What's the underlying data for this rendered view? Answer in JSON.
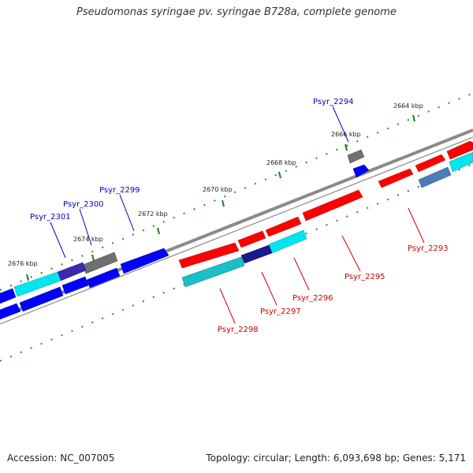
{
  "title": "Pseudomonas syringae pv. syringae B728a, complete genome",
  "footer": {
    "accession": "Accession: NC_007005",
    "stats": "Topology: circular; Length: 6,093,698 bp; Genes: 5,171"
  },
  "colors": {
    "forward_gene": "#ff0000",
    "reverse_gene": "#0000ff",
    "cyan_feature": "#00e5f0",
    "gray_feature": "#707070",
    "steelblue_feature": "#4a7db8",
    "backbone": "#8a8a8a",
    "tick_dots": "#2a8a2a",
    "label_forward": "#cc0000",
    "label_reverse": "#0000cc"
  },
  "scale_labels": [
    "2664 kbp",
    "2666 kbp",
    "2668 kbp",
    "2670 kbp",
    "2672 kbp",
    "2674 kbp",
    "2676 kbp"
  ],
  "gene_labels": [
    {
      "name": "Psyr_2294",
      "strand": "reverse"
    },
    {
      "name": "Psyr_2299",
      "strand": "reverse"
    },
    {
      "name": "Psyr_2300",
      "strand": "reverse"
    },
    {
      "name": "Psyr_2301",
      "strand": "reverse"
    },
    {
      "name": "Psyr_2293",
      "strand": "forward"
    },
    {
      "name": "Psyr_2295",
      "strand": "forward"
    },
    {
      "name": "Psyr_2296",
      "strand": "forward"
    },
    {
      "name": "Psyr_2297",
      "strand": "forward"
    },
    {
      "name": "Psyr_2298",
      "strand": "forward"
    }
  ]
}
